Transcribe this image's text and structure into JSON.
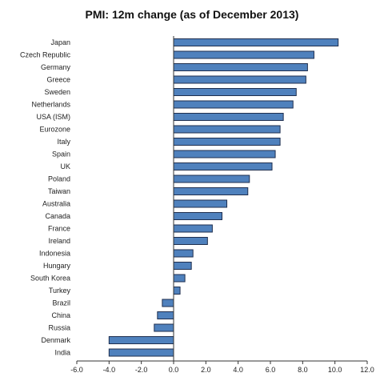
{
  "chart_data": {
    "type": "bar",
    "orientation": "horizontal",
    "title": "PMI: 12m change (as of December 2013)",
    "xlabel": "",
    "ylabel": "",
    "xlim": [
      -6.0,
      12.0
    ],
    "x_ticks": [
      "-6.0",
      "-4.0",
      "-2.0",
      "0.0",
      "2.0",
      "4.0",
      "6.0",
      "8.0",
      "10.0",
      "12.0"
    ],
    "grid": false,
    "legend": "none",
    "colors": {
      "bar_fill": "#4f81bd",
      "bar_stroke": "#1f2f4f",
      "axis": "#333333"
    },
    "categories": [
      "Japan",
      "Czech Republic",
      "Germany",
      "Greece",
      "Sweden",
      "Netherlands",
      "USA (ISM)",
      "Eurozone",
      "Italy",
      "Spain",
      "UK",
      "Poland",
      "Taiwan",
      "Australia",
      "Canada",
      "France",
      "Ireland",
      "Indonesia",
      "Hungary",
      "South Korea",
      "Turkey",
      "Brazil",
      "China",
      "Russia",
      "Denmark",
      "India"
    ],
    "values": [
      10.2,
      8.7,
      8.3,
      8.2,
      7.6,
      7.4,
      6.8,
      6.6,
      6.6,
      6.3,
      6.1,
      4.7,
      4.6,
      3.3,
      3.0,
      2.4,
      2.1,
      1.2,
      1.1,
      0.7,
      0.4,
      -0.7,
      -1.0,
      -1.2,
      -4.0,
      -4.0
    ]
  }
}
